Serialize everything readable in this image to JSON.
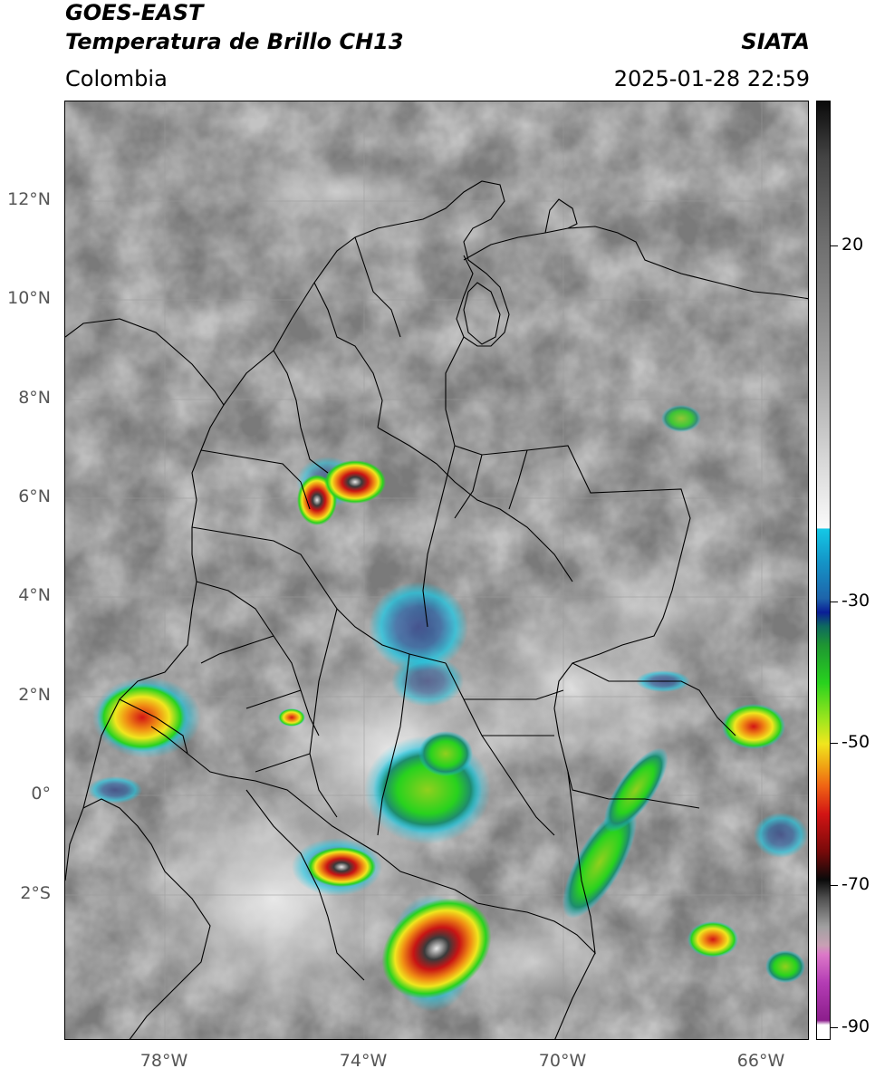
{
  "header": {
    "satellite": "GOES-EAST",
    "product": "Temperatura de Brillo CH13",
    "org": "SIATA",
    "region": "Colombia",
    "datetime": "2025-01-28 22:59"
  },
  "map": {
    "lat_labels": [
      "12°N",
      "10°N",
      "8°N",
      "6°N",
      "4°N",
      "2°N",
      "0°",
      "2°S"
    ],
    "lon_labels": [
      "78°W",
      "74°W",
      "70°W",
      "66°W"
    ]
  },
  "colorbar": {
    "labels": [
      "20",
      "-30",
      "-50",
      "-70",
      "-90"
    ],
    "colors": {
      "warm_top": "#111111",
      "white_mid": "#f4f4f4",
      "cyan": "#14c8e6",
      "blue": "#0a1e96",
      "green": "#28d21e",
      "yellow": "#f0e61e",
      "orange": "#f08c14",
      "red": "#d21414",
      "black": "#0a0a0a",
      "pink": "#dc78c8",
      "purple": "#8c1e8c"
    }
  }
}
